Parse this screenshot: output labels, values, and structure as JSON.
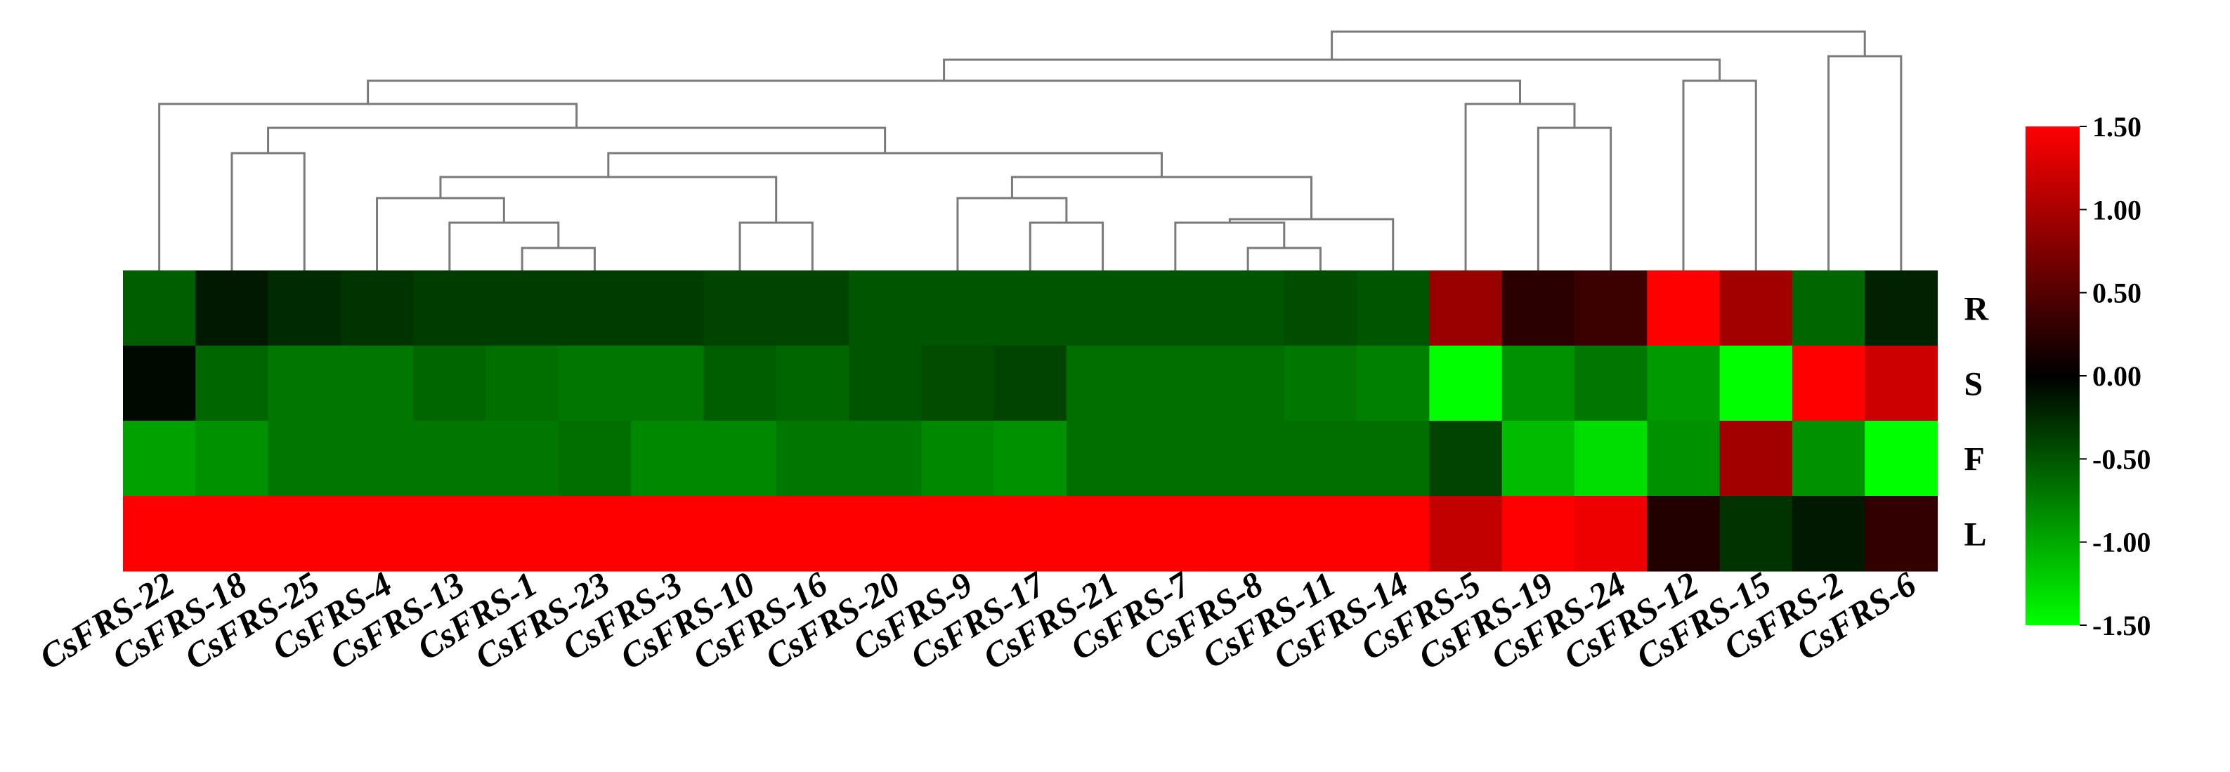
{
  "chart_data": {
    "type": "heatmap",
    "columns": [
      "CsFRS-22",
      "CsFRS-18",
      "CsFRS-25",
      "CsFRS-4",
      "CsFRS-13",
      "CsFRS-1",
      "CsFRS-23",
      "CsFRS-3",
      "CsFRS-10",
      "CsFRS-16",
      "CsFRS-20",
      "CsFRS-9",
      "CsFRS-17",
      "CsFRS-21",
      "CsFRS-7",
      "CsFRS-8",
      "CsFRS-11",
      "CsFRS-14",
      "CsFRS-5",
      "CsFRS-19",
      "CsFRS-24",
      "CsFRS-12",
      "CsFRS-15",
      "CsFRS-2",
      "CsFRS-6"
    ],
    "rows": [
      "R",
      "S",
      "F",
      "L"
    ],
    "values": [
      [
        -0.55,
        -0.15,
        -0.25,
        -0.3,
        -0.35,
        -0.35,
        -0.35,
        -0.35,
        -0.4,
        -0.4,
        -0.5,
        -0.5,
        -0.5,
        -0.5,
        -0.5,
        -0.5,
        -0.45,
        -0.5,
        0.9,
        0.25,
        0.35,
        1.5,
        0.95,
        -0.6,
        -0.2
      ],
      [
        -0.05,
        -0.6,
        -0.7,
        -0.7,
        -0.6,
        -0.65,
        -0.7,
        -0.7,
        -0.55,
        -0.6,
        -0.5,
        -0.45,
        -0.4,
        -0.65,
        -0.65,
        -0.65,
        -0.7,
        -0.75,
        -1.5,
        -0.85,
        -0.7,
        -0.9,
        -1.5,
        1.5,
        1.2
      ],
      [
        -0.95,
        -0.85,
        -0.7,
        -0.7,
        -0.7,
        -0.7,
        -0.65,
        -0.8,
        -0.8,
        -0.7,
        -0.7,
        -0.8,
        -0.85,
        -0.65,
        -0.65,
        -0.65,
        -0.65,
        -0.65,
        -0.4,
        -1.1,
        -1.3,
        -0.85,
        0.95,
        -0.85,
        -1.5
      ],
      [
        1.5,
        1.5,
        1.5,
        1.5,
        1.5,
        1.5,
        1.5,
        1.5,
        1.5,
        1.5,
        1.5,
        1.5,
        1.5,
        1.5,
        1.5,
        1.5,
        1.5,
        1.5,
        1.15,
        1.5,
        1.4,
        0.2,
        -0.3,
        -0.15,
        0.3
      ]
    ],
    "color_scale": {
      "min": -1.5,
      "max": 1.5,
      "low_color": "#00ff00",
      "mid_color": "#000000",
      "high_color": "#ff0000",
      "ticks": [
        "1.50",
        "1.00",
        "0.50",
        "0.00",
        "-0.50",
        "-1.00",
        "-1.50"
      ]
    },
    "dendrogram": true,
    "legend_position": "right"
  }
}
